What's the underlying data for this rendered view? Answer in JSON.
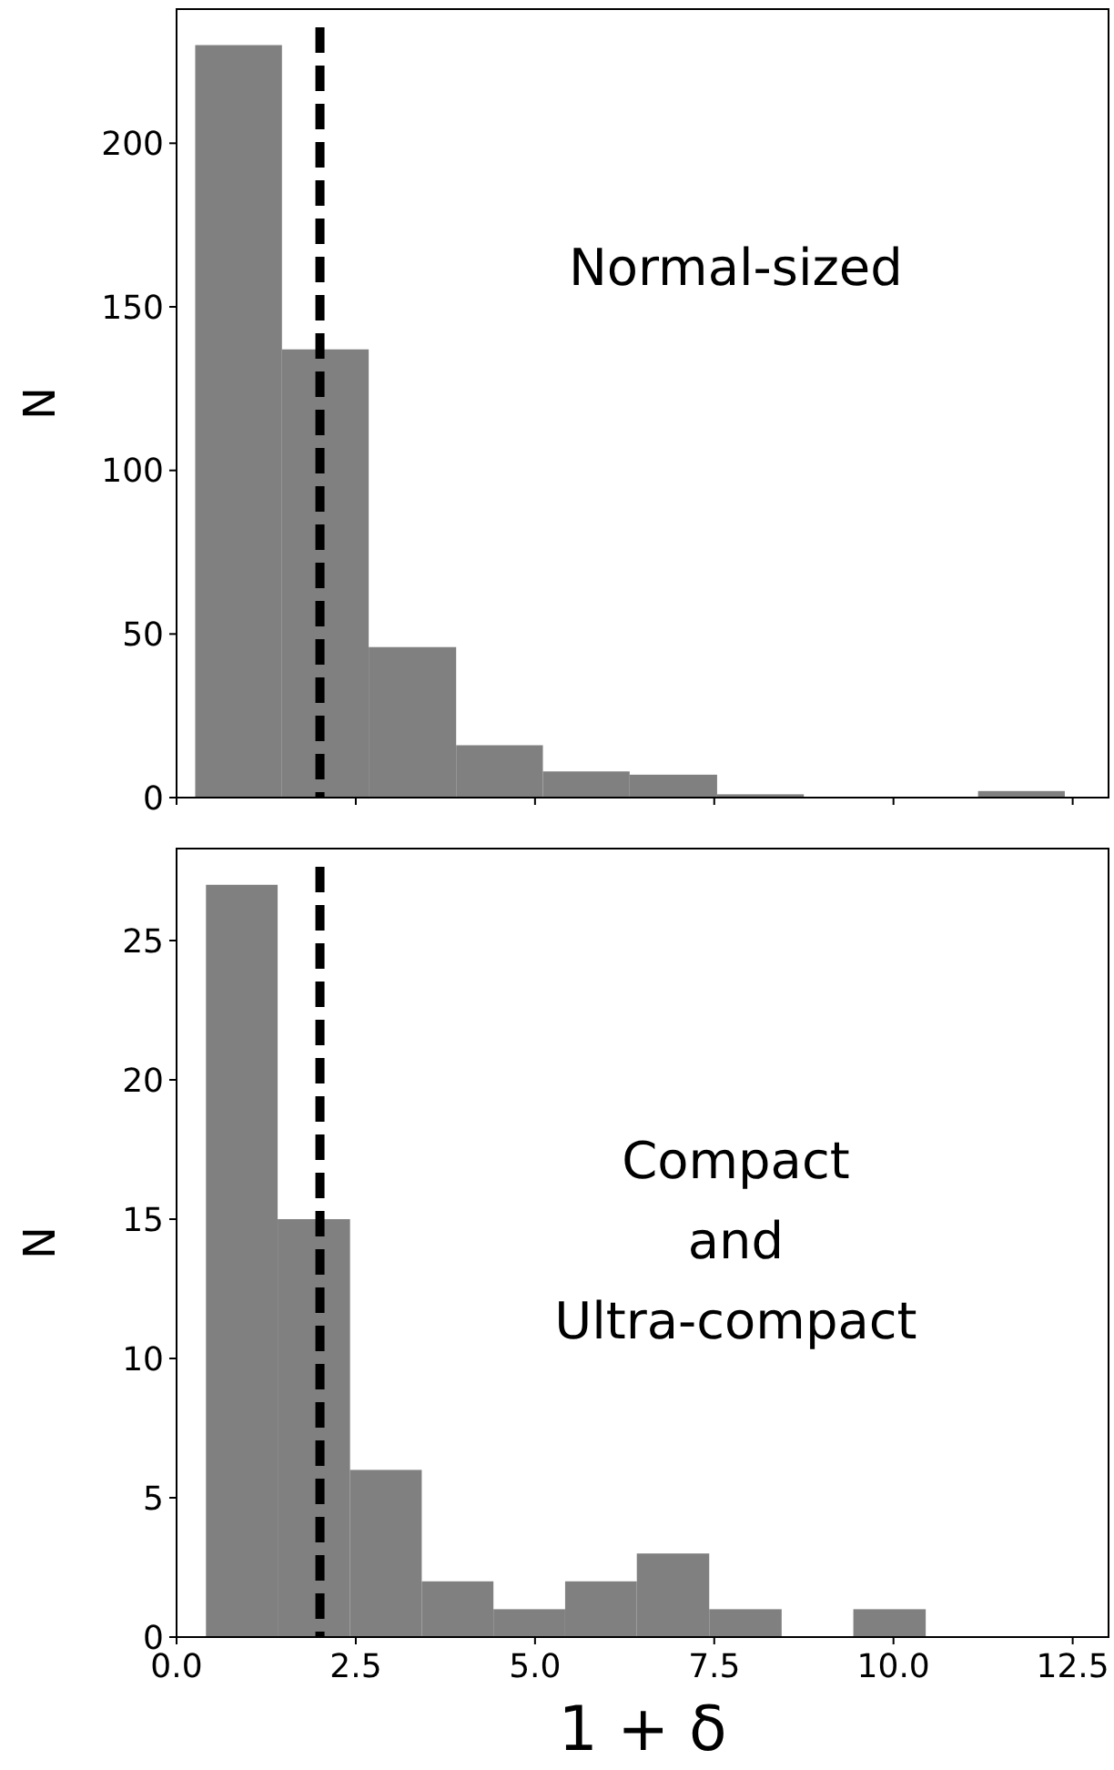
{
  "chart_data": [
    {
      "type": "histogram",
      "ylabel": "N",
      "annotations": [
        "Normal-sized"
      ],
      "bins": [
        0.26,
        1.47,
        2.68,
        3.9,
        5.11,
        6.32,
        7.54,
        8.75,
        11.18,
        12.39
      ],
      "values": [
        230,
        137,
        46,
        16,
        8,
        7,
        1,
        0,
        2
      ],
      "color": "#808080",
      "xlim": [
        0,
        13
      ],
      "xticks": [
        0,
        2.5,
        5,
        7.5,
        10,
        12.5
      ],
      "ylim": [
        0,
        241
      ],
      "yticks": [
        0,
        50,
        100,
        150,
        200
      ],
      "tick_labels": "y",
      "ref_lines": [
        {
          "axis": "x",
          "value": 2,
          "color": "#000000",
          "line_style": "dashed"
        }
      ]
    },
    {
      "type": "histogram",
      "ylabel": "N",
      "xlabel": "1 + δ",
      "annotations": [
        "Compact\nand\nUltra-compact"
      ],
      "bins": [
        0.41,
        1.41,
        2.42,
        3.42,
        4.42,
        5.42,
        6.42,
        7.43,
        8.44,
        9.44,
        10.45
      ],
      "values": [
        27,
        15,
        6,
        2,
        1,
        2,
        3,
        1,
        0,
        1
      ],
      "color": "#808080",
      "xlim": [
        0,
        13
      ],
      "xticks": [
        {
          "value": 0,
          "label": "0.0"
        },
        2.5,
        {
          "value": 5,
          "label": "5.0"
        },
        7.5,
        {
          "value": 10,
          "label": "10.0"
        },
        12.5
      ],
      "ylim": [
        0,
        28.3
      ],
      "yticks": [
        0,
        5,
        10,
        15,
        20,
        25
      ],
      "ref_lines": [
        {
          "axis": "x",
          "value": 2,
          "color": "#000000",
          "line_style": "dashed"
        }
      ]
    }
  ]
}
